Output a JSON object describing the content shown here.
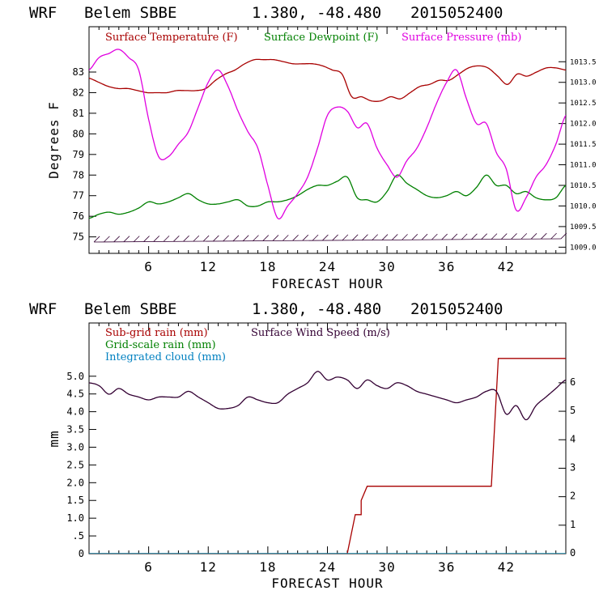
{
  "chart_data": [
    {
      "type": "line",
      "header": {
        "model": "WRF",
        "station": "Belem SBBE",
        "coords": "1.380, -48.480",
        "run": "2015052400"
      },
      "xlabel": "FORECAST HOUR",
      "ylabel": "Degrees F",
      "xlim": [
        0,
        48
      ],
      "x_ticks": [
        "6",
        "12",
        "18",
        "24",
        "30",
        "36",
        "42"
      ],
      "ylim": [
        74.2,
        85.2
      ],
      "y_ticks": [
        "75",
        "76",
        "77",
        "78",
        "79",
        "80",
        "81",
        "82",
        "83"
      ],
      "y2lim": [
        1008.85,
        1014.35
      ],
      "y2_ticks": [
        "1009.0",
        "1009.5",
        "1010.0",
        "1010.5",
        "1011.0",
        "1011.5",
        "1012.0",
        "1012.5",
        "1013.0",
        "1013.5"
      ],
      "series": [
        {
          "name": "Surface Temperature (F)",
          "color": "#a80000",
          "axis": "left",
          "x": [
            0,
            1,
            2,
            3,
            4,
            5,
            6,
            7,
            8,
            9,
            10,
            11,
            12,
            13,
            14,
            15,
            16,
            17,
            18,
            19,
            20,
            21,
            22,
            23,
            24,
            25,
            26,
            26.5,
            27,
            28,
            29,
            30,
            31,
            32,
            33,
            34,
            35,
            36,
            37,
            38,
            39,
            40,
            41,
            42,
            43,
            44,
            45,
            46,
            47,
            48
          ],
          "values": [
            82.7,
            82.5,
            82.3,
            82.2,
            82.2,
            82.1,
            82.0,
            82.0,
            82.0,
            82.1,
            82.1,
            82.1,
            82.2,
            82.6,
            82.9,
            83.1,
            83.4,
            83.6,
            83.6,
            83.6,
            83.5,
            83.4,
            83.4,
            83.4,
            83.3,
            83.1,
            82.9,
            81.8,
            81.8,
            81.6,
            81.6,
            81.8,
            81.7,
            82.0,
            82.3,
            82.4,
            82.6,
            82.6,
            82.9,
            83.2,
            83.3,
            83.2,
            82.8,
            82.4,
            82.9,
            82.8,
            83.0,
            83.2,
            83.2,
            83.1
          ]
        },
        {
          "name": "Surface Dewpoint (F)",
          "color": "#008000",
          "axis": "left",
          "x": [
            0,
            1,
            2,
            3,
            4,
            5,
            6,
            7,
            8,
            9,
            10,
            11,
            12,
            13,
            14,
            15,
            16,
            17,
            18,
            19,
            20,
            21,
            22,
            23,
            24,
            25,
            26,
            27,
            28,
            29,
            30,
            31,
            32,
            33,
            34,
            35,
            36,
            37,
            38,
            39,
            40,
            41,
            42,
            43,
            44,
            45,
            46,
            47,
            48
          ],
          "values": [
            75.9,
            76.1,
            76.2,
            76.1,
            76.2,
            76.4,
            76.7,
            76.6,
            76.7,
            76.9,
            77.1,
            76.8,
            76.6,
            76.6,
            76.7,
            76.8,
            76.5,
            76.5,
            76.7,
            76.7,
            76.8,
            77.0,
            77.3,
            77.5,
            77.5,
            77.7,
            77.9,
            76.9,
            76.8,
            76.7,
            77.2,
            78.0,
            77.6,
            77.3,
            77.0,
            76.9,
            77.0,
            77.2,
            77.0,
            77.4,
            78.0,
            77.5,
            77.5,
            77.1,
            77.2,
            76.9,
            76.8,
            76.9,
            77.5
          ]
        },
        {
          "name": "Surface Pressure (mb)",
          "color": "#e000e0",
          "axis": "right",
          "x": [
            0,
            1,
            2,
            3,
            4,
            5,
            6,
            7,
            8,
            9,
            10,
            11,
            12,
            13,
            14,
            15,
            16,
            17,
            18,
            19,
            20,
            21,
            22,
            23,
            24,
            25,
            26,
            27,
            28,
            29,
            30,
            31,
            32,
            33,
            34,
            35,
            36,
            37,
            38,
            39,
            40,
            41,
            42,
            43,
            44,
            45,
            46,
            47,
            48
          ],
          "values": [
            1013.3,
            1013.6,
            1013.7,
            1013.8,
            1013.6,
            1013.3,
            1012.1,
            1011.2,
            1011.2,
            1011.5,
            1011.8,
            1012.4,
            1013.0,
            1013.3,
            1012.9,
            1012.3,
            1011.8,
            1011.4,
            1010.5,
            1009.7,
            1010.0,
            1010.3,
            1010.7,
            1011.4,
            1012.2,
            1012.4,
            1012.3,
            1011.9,
            1012.0,
            1011.4,
            1011.0,
            1010.7,
            1011.1,
            1011.4,
            1011.9,
            1012.5,
            1013.0,
            1013.3,
            1012.6,
            1012.0,
            1012.0,
            1011.3,
            1010.9,
            1009.9,
            1010.2,
            1010.7,
            1011.0,
            1011.5,
            1012.2
          ]
        }
      ],
      "wind_barbs": true
    },
    {
      "type": "line",
      "header": {
        "model": "WRF",
        "station": "Belem SBBE",
        "coords": "1.380, -48.480",
        "run": "2015052400"
      },
      "xlabel": "FORECAST HOUR",
      "ylabel": "mm",
      "xlim": [
        0,
        48
      ],
      "x_ticks": [
        "6",
        "12",
        "18",
        "24",
        "30",
        "36",
        "42"
      ],
      "ylim": [
        0,
        6.5
      ],
      "y_ticks": [
        "0",
        ".5",
        "1.0",
        "1.5",
        "2.0",
        "2.5",
        "3.0",
        "3.5",
        "4.0",
        "4.5",
        "5.0"
      ],
      "y2lim": [
        0,
        8.1
      ],
      "y2_ticks": [
        "0",
        "1",
        "2",
        "3",
        "4",
        "5",
        "6"
      ],
      "series": [
        {
          "name": "Sub-grid rain (mm)",
          "color": "#a80000",
          "axis": "left",
          "x": [
            0,
            26,
            26.8,
            27.4,
            27.4,
            28.0,
            28.2,
            40.5,
            41.2,
            48
          ],
          "values": [
            0,
            0,
            1.1,
            1.1,
            1.5,
            1.9,
            1.9,
            1.9,
            5.5,
            5.5
          ]
        },
        {
          "name": "Grid-scale rain (mm)",
          "color": "#008000",
          "axis": "left",
          "x": [
            0,
            48
          ],
          "values": [
            0,
            0
          ]
        },
        {
          "name": "Integrated cloud (mm)",
          "color": "#0080c0",
          "axis": "left",
          "x": [
            0,
            48
          ],
          "values": [
            0,
            0
          ]
        },
        {
          "name": "Surface Wind Speed (m/s)",
          "color": "#330033",
          "axis": "right",
          "x": [
            0,
            1,
            2,
            3,
            4,
            5,
            6,
            7,
            8,
            9,
            10,
            11,
            12,
            13,
            14,
            15,
            16,
            17,
            18,
            19,
            20,
            21,
            22,
            23,
            24,
            25,
            26,
            27,
            28,
            29,
            30,
            31,
            32,
            33,
            34,
            35,
            36,
            37,
            38,
            39,
            40,
            41,
            42,
            43,
            44,
            45,
            46,
            47,
            48
          ],
          "values": [
            6.0,
            5.9,
            5.6,
            5.8,
            5.6,
            5.5,
            5.4,
            5.5,
            5.5,
            5.5,
            5.7,
            5.5,
            5.3,
            5.1,
            5.1,
            5.2,
            5.5,
            5.4,
            5.3,
            5.3,
            5.6,
            5.8,
            6.0,
            6.4,
            6.1,
            6.2,
            6.1,
            5.8,
            6.1,
            5.9,
            5.8,
            6.0,
            5.9,
            5.7,
            5.6,
            5.5,
            5.4,
            5.3,
            5.4,
            5.5,
            5.7,
            5.7,
            4.9,
            5.2,
            4.7,
            5.2,
            5.5,
            5.8,
            6.1
          ]
        }
      ]
    }
  ]
}
